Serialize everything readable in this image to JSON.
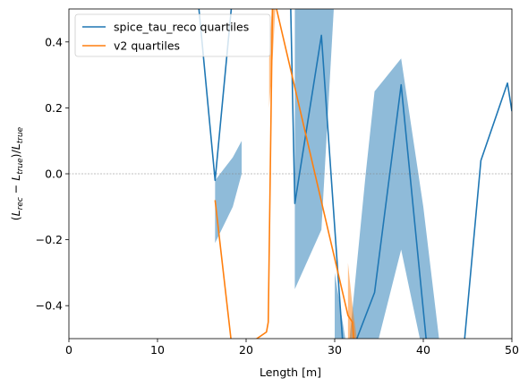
{
  "chart_data": {
    "type": "line",
    "xlabel": "Length [m]",
    "ylabel": "(L_rec − L_true)/L_true",
    "xlim": [
      0,
      50
    ],
    "ylim": [
      -0.5,
      0.5
    ],
    "xticks": [
      "0",
      "10",
      "20",
      "30",
      "40",
      "50"
    ],
    "yticks": [
      "−0.4",
      "−0.2",
      "0.0",
      "0.2",
      "0.4"
    ],
    "reference_line_y": 0.0,
    "legend_position": "upper-left",
    "colors": {
      "spice": "#1f77b4",
      "v2": "#ff7f0e",
      "grid_ref": "#808080"
    },
    "series": [
      {
        "name": "spice_tau_reco quartiles",
        "color": "#1f77b4",
        "x": [
          14.5,
          16.5,
          18.5,
          19.5,
          25.0,
          25.5,
          28.5,
          31.0,
          32.5,
          34.5,
          37.5,
          40.5,
          41.5,
          44.5,
          46.5,
          49.5,
          50.0
        ],
        "y": [
          0.55,
          -0.02,
          0.55,
          0.55,
          0.55,
          -0.09,
          0.42,
          -0.55,
          -0.5,
          -0.36,
          0.27,
          -0.55,
          -0.55,
          -0.55,
          0.04,
          0.275,
          0.19
        ],
        "band": [
          {
            "x": [
              16.5,
              18.5,
              19.5
            ],
            "lower": [
              -0.21,
              -0.1,
              0.0
            ],
            "upper": [
              -0.02,
              0.05,
              0.1
            ]
          },
          {
            "x": [
              25.5,
              28.5,
              30.0
            ],
            "lower": [
              -0.35,
              -0.17,
              0.55
            ],
            "upper": [
              0.55,
              0.55,
              0.55
            ]
          },
          {
            "x": [
              30.0,
              31.5,
              33.5,
              34.5,
              37.5,
              40.0,
              42.0
            ],
            "lower": [
              -0.55,
              -0.55,
              -0.55,
              -0.55,
              -0.23,
              -0.55,
              -0.55
            ],
            "upper": [
              -0.3,
              -0.55,
              0.0,
              0.25,
              0.35,
              -0.1,
              -0.55
            ]
          }
        ]
      },
      {
        "name": "v2 quartiles",
        "color": "#ff7f0e",
        "x": [
          16.5,
          18.5,
          22.3,
          22.5,
          23.0,
          31.5,
          32.0,
          32.3
        ],
        "y": [
          -0.08,
          -0.55,
          -0.48,
          -0.45,
          0.55,
          -0.43,
          -0.45,
          -0.55
        ],
        "band": [
          {
            "x": [
              22.6,
              23.0,
              23.4
            ],
            "lower": [
              0.2,
              0.35,
              0.55
            ],
            "upper": [
              0.35,
              0.55,
              0.55
            ]
          },
          {
            "x": [
              31.5,
              32.0,
              32.5
            ],
            "lower": [
              -0.5,
              -0.55,
              -0.55
            ],
            "upper": [
              -0.27,
              -0.4,
              -0.5
            ]
          }
        ]
      }
    ]
  }
}
